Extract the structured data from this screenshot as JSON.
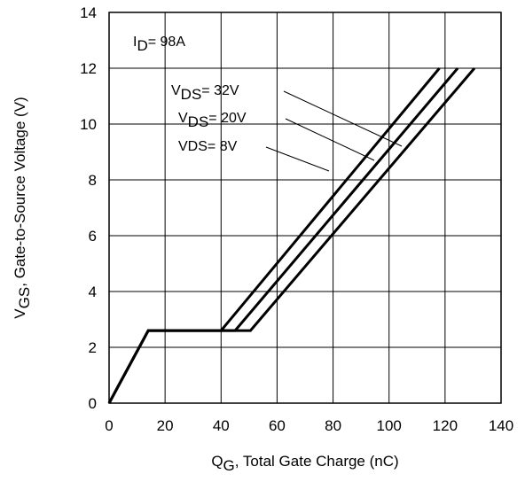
{
  "chart_data": {
    "type": "line",
    "title": "",
    "xlabel": {
      "main": "Q",
      "sub": "G",
      "rest": ",  Total Gate Charge (nC)"
    },
    "ylabel": {
      "main": "V",
      "sub": "GS",
      "rest": ", Gate-to-Source Voltage (V)"
    },
    "xlim": [
      0,
      140
    ],
    "ylim": [
      0,
      14
    ],
    "xticks": [
      0,
      20,
      40,
      60,
      80,
      100,
      120,
      140
    ],
    "yticks": [
      0,
      2,
      4,
      6,
      8,
      10,
      12,
      14
    ],
    "grid": true,
    "annotation": {
      "main": "I",
      "sub": "D",
      "rest": "= 98A"
    },
    "series": [
      {
        "label": {
          "main": "V",
          "sub": "DS",
          "rest": "= 32V"
        },
        "points": [
          [
            0,
            0
          ],
          [
            14,
            2.6
          ],
          [
            40,
            2.6
          ],
          [
            118,
            12
          ]
        ]
      },
      {
        "label": {
          "main": "V",
          "sub": "DS",
          "rest": "= 20V"
        },
        "points": [
          [
            0,
            0
          ],
          [
            14,
            2.6
          ],
          [
            45,
            2.6
          ],
          [
            124.5,
            12
          ]
        ]
      },
      {
        "label": {
          "main": "VDS= 8V",
          "sub": "",
          "rest": ""
        },
        "points": [
          [
            0,
            0
          ],
          [
            14,
            2.6
          ],
          [
            50.5,
            2.6
          ],
          [
            130.5,
            12
          ]
        ]
      }
    ],
    "line_color": "#000000"
  }
}
